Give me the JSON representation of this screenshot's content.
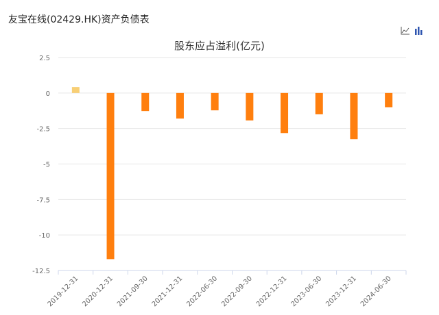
{
  "header": {
    "title": "友宝在线(02429.HK)资产负债表"
  },
  "toolbar": {
    "line_icon": "line-chart-icon",
    "bar_icon": "bar-chart-icon",
    "accent": "#2f56b0"
  },
  "colors": {
    "positive": "#f8cf75",
    "negative": "#ff7f0e"
  },
  "chart_data": {
    "type": "bar",
    "title": "股东应占溢利(亿元)",
    "xlabel": "",
    "ylabel": "",
    "categories": [
      "2019-12-31",
      "2020-12-31",
      "2021-09-30",
      "2021-12-31",
      "2022-06-30",
      "2022-09-30",
      "2022-12-31",
      "2023-06-30",
      "2023-12-31",
      "2024-06-30"
    ],
    "values": [
      0.42,
      -11.7,
      -1.27,
      -1.8,
      -1.22,
      -1.93,
      -2.82,
      -1.5,
      -3.25,
      -1.0
    ],
    "ylim": [
      -12.5,
      2.5
    ],
    "yticks": [
      "2.5",
      "0",
      "-2.5",
      "-5",
      "-7.5",
      "-10",
      "-12.5"
    ],
    "ytick_values": [
      2.5,
      0,
      -2.5,
      -5,
      -7.5,
      -10,
      -12.5
    ],
    "grid": true,
    "legend": "none"
  }
}
